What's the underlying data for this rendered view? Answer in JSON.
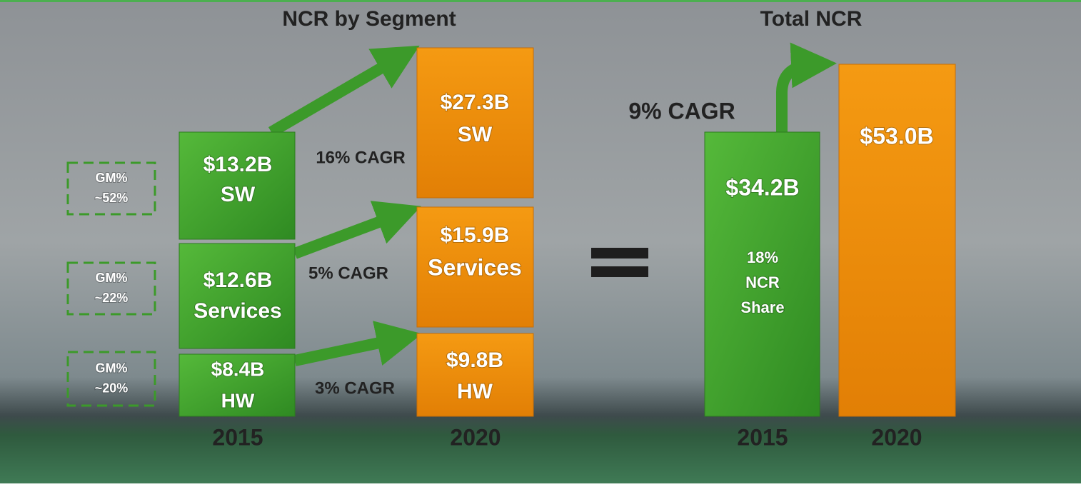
{
  "segment": {
    "title": "NCR by Segment",
    "gross_margin": [
      {
        "label": "GM%",
        "value": "~52%"
      },
      {
        "label": "GM%",
        "value": "~22%"
      },
      {
        "label": "GM%",
        "value": "~20%"
      }
    ],
    "bars_2015": [
      {
        "value": "$13.2B",
        "label": "SW"
      },
      {
        "value": "$12.6B",
        "label": "Services"
      },
      {
        "value": "$8.4B",
        "label": "HW"
      }
    ],
    "bars_2020": [
      {
        "value": "$27.3B",
        "label": "SW"
      },
      {
        "value": "$15.9B",
        "label": "Services"
      },
      {
        "value": "$9.8B",
        "label": "HW"
      }
    ],
    "cagr": [
      "16% CAGR",
      "5% CAGR",
      "3% CAGR"
    ],
    "years": [
      "2015",
      "2020"
    ]
  },
  "total": {
    "title": "Total NCR",
    "cagr": "9% CAGR",
    "bar_2015": {
      "value": "$34.2B",
      "share": [
        "18%",
        "NCR",
        "Share"
      ]
    },
    "bar_2020": {
      "value": "$53.0B"
    },
    "years": [
      "2015",
      "2020"
    ]
  }
}
